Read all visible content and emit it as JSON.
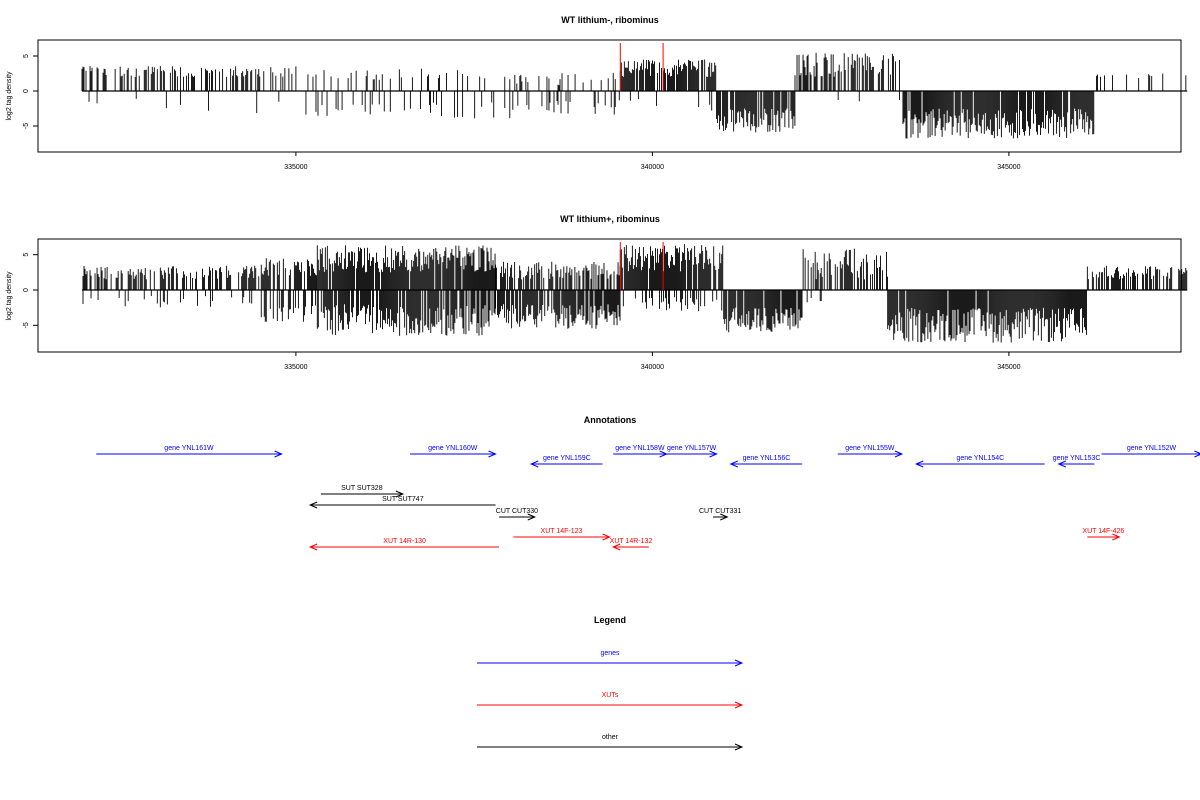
{
  "chart_data": [
    {
      "type": "bar",
      "title": "WT lithium-, ribominus",
      "ylabel": "log2 tag density",
      "xlabel": "",
      "xlim": [
        332000,
        347500
      ],
      "ylim": [
        -8.5,
        7.5
      ],
      "x_ticks": [
        335000,
        340000,
        345000
      ],
      "x_tick_labels": [
        "335000",
        "340000",
        "345000"
      ],
      "y_ticks": [
        -5,
        0,
        5
      ],
      "y_tick_labels": [
        "-5",
        "0",
        "5"
      ],
      "grid": false,
      "bar_color": "#000000",
      "marker_color": "#ff0000",
      "markers_x": [
        339550,
        340150
      ],
      "segments": [
        {
          "x": [
            332000,
            335000
          ],
          "pos": [
            2,
            3.6
          ],
          "pos_density": 0.45,
          "neg": [
            -3.5,
            -1
          ],
          "neg_density": 0.04
        },
        {
          "x": [
            335000,
            338000
          ],
          "pos": [
            1.5,
            3.2
          ],
          "pos_density": 0.2,
          "neg": [
            -4,
            -1.5
          ],
          "neg_density": 0.12
        },
        {
          "x": [
            338000,
            339550
          ],
          "pos": [
            0.8,
            2.6
          ],
          "pos_density": 0.18,
          "neg": [
            -3.5,
            -1.2
          ],
          "neg_density": 0.25
        },
        {
          "x": [
            339550,
            340900
          ],
          "pos": [
            2,
            4.5
          ],
          "pos_density": 0.85,
          "neg": [
            -3,
            -1
          ],
          "neg_density": 0.1
        },
        {
          "x": [
            340900,
            342000
          ],
          "pos": [
            0,
            0
          ],
          "pos_density": 0,
          "neg": [
            -6,
            -2.5
          ],
          "neg_density": 0.85
        },
        {
          "x": [
            342000,
            343500
          ],
          "pos": [
            2,
            5.5
          ],
          "pos_density": 0.6,
          "neg": [
            -2,
            -1
          ],
          "neg_density": 0.02
        },
        {
          "x": [
            343500,
            346200
          ],
          "pos": [
            0,
            0
          ],
          "pos_density": 0,
          "neg": [
            -6.8,
            -2.5
          ],
          "neg_density": 0.9
        },
        {
          "x": [
            346200,
            347500
          ],
          "pos": [
            1.5,
            2.6
          ],
          "pos_density": 0.15,
          "neg": [
            0,
            0
          ],
          "neg_density": 0
        }
      ]
    },
    {
      "type": "bar",
      "title": "WT lithium+, ribominus",
      "ylabel": "log2 tag density",
      "xlabel": "",
      "xlim": [
        332000,
        347500
      ],
      "ylim": [
        -8.5,
        7.5
      ],
      "x_ticks": [
        335000,
        340000,
        345000
      ],
      "x_tick_labels": [
        "335000",
        "340000",
        "345000"
      ],
      "y_ticks": [
        -5,
        0,
        5
      ],
      "y_tick_labels": [
        "-5",
        "0",
        "5"
      ],
      "grid": false,
      "bar_color": "#000000",
      "marker_color": "#ff0000",
      "markers_x": [
        339550,
        340150
      ],
      "segments": [
        {
          "x": [
            332000,
            334500
          ],
          "pos": [
            1.5,
            3.5
          ],
          "pos_density": 0.55,
          "neg": [
            -2.5,
            -0.8
          ],
          "neg_density": 0.1
        },
        {
          "x": [
            334500,
            335300
          ],
          "pos": [
            2,
            4.5
          ],
          "pos_density": 0.7,
          "neg": [
            -4.5,
            -1.5
          ],
          "neg_density": 0.35
        },
        {
          "x": [
            335300,
            337800
          ],
          "pos": [
            2.5,
            6.5
          ],
          "pos_density": 0.95,
          "neg": [
            -6.5,
            -2
          ],
          "neg_density": 0.85
        },
        {
          "x": [
            337800,
            339550
          ],
          "pos": [
            1.5,
            4
          ],
          "pos_density": 0.6,
          "neg": [
            -5.5,
            -2
          ],
          "neg_density": 0.85
        },
        {
          "x": [
            339550,
            341000
          ],
          "pos": [
            2.5,
            6.5
          ],
          "pos_density": 0.95,
          "neg": [
            -3,
            -1
          ],
          "neg_density": 0.3
        },
        {
          "x": [
            341000,
            342100
          ],
          "pos": [
            0,
            0
          ],
          "pos_density": 0,
          "neg": [
            -6,
            -2.5
          ],
          "neg_density": 0.9
        },
        {
          "x": [
            342100,
            343300
          ],
          "pos": [
            1.5,
            6
          ],
          "pos_density": 0.6,
          "neg": [
            -2,
            -1
          ],
          "neg_density": 0.05
        },
        {
          "x": [
            343300,
            346100
          ],
          "pos": [
            0,
            0
          ],
          "pos_density": 0,
          "neg": [
            -7.5,
            -2.5
          ],
          "neg_density": 0.95
        },
        {
          "x": [
            346100,
            347500
          ],
          "pos": [
            1.5,
            3.5
          ],
          "pos_density": 0.6,
          "neg": [
            0,
            0
          ],
          "neg_density": 0
        }
      ]
    },
    {
      "type": "annotation-track",
      "title": "Annotations",
      "xlim": [
        332000,
        347500
      ],
      "features": [
        {
          "label": "gene YNL161W",
          "start": 332200,
          "end": 334800,
          "strand": "+",
          "row": 0,
          "class": "gene"
        },
        {
          "label": "gene YNL160W",
          "start": 336600,
          "end": 337800,
          "strand": "+",
          "row": 0,
          "class": "gene"
        },
        {
          "label": "gene YNL159C",
          "start": 338300,
          "end": 339300,
          "strand": "-",
          "row": 1,
          "class": "gene"
        },
        {
          "label": "gene YNL158W",
          "start": 339450,
          "end": 340200,
          "strand": "+",
          "row": 0,
          "class": "gene"
        },
        {
          "label": "gene YNL157W",
          "start": 340200,
          "end": 340900,
          "strand": "+",
          "row": 0,
          "class": "gene"
        },
        {
          "label": "gene YNL156C",
          "start": 341100,
          "end": 342100,
          "strand": "-",
          "row": 1,
          "class": "gene"
        },
        {
          "label": "gene YNL155W",
          "start": 342600,
          "end": 343500,
          "strand": "+",
          "row": 0,
          "class": "gene"
        },
        {
          "label": "gene YNL154C",
          "start": 343700,
          "end": 345500,
          "strand": "-",
          "row": 1,
          "class": "gene"
        },
        {
          "label": "gene YNL153C",
          "start": 345700,
          "end": 346200,
          "strand": "-",
          "row": 1,
          "class": "gene"
        },
        {
          "label": "gene YNL152W",
          "start": 346300,
          "end": 347700,
          "strand": "+",
          "row": 0,
          "class": "gene"
        },
        {
          "label": "SUT SUT328",
          "start": 535200,
          "end": 0,
          "strand": "",
          "row": -1,
          "class": "skip"
        }
      ],
      "others": [
        {
          "label": "SUT SUT328",
          "start": 335350,
          "end": 336500,
          "strand": "+",
          "row": 2,
          "class": "other"
        },
        {
          "label": "SUT SUT747",
          "start": 335200,
          "end": 337800,
          "strand": "-",
          "row": 3,
          "class": "other"
        },
        {
          "label": "CUT CUT330",
          "start": 337850,
          "end": 338350,
          "strand": "+",
          "row": 4,
          "class": "other"
        },
        {
          "label": "CUT CUT331",
          "start": 340850,
          "end": 341050,
          "strand": "+",
          "row": 4,
          "class": "other"
        },
        {
          "label": "XUT 14F-123",
          "start": 338050,
          "end": 339400,
          "strand": "+",
          "row": 5,
          "class": "xut"
        },
        {
          "label": "XUT 14R-130",
          "start": 335200,
          "end": 337850,
          "strand": "-",
          "row": 6,
          "class": "xut"
        },
        {
          "label": "XUT 14R-132",
          "start": 339450,
          "end": 339950,
          "strand": "-",
          "row": 6,
          "class": "xut"
        },
        {
          "label": "XUT 14F-426",
          "start": 346100,
          "end": 346550,
          "strand": "+",
          "row": 5,
          "class": "xut"
        }
      ]
    },
    {
      "type": "legend",
      "title": "Legend",
      "entries": [
        {
          "label": "genes",
          "color": "#0000ff"
        },
        {
          "label": "XUTs",
          "color": "#ff0000"
        },
        {
          "label": "other",
          "color": "#000000"
        }
      ]
    }
  ],
  "colors": {
    "gene": "#0000ff",
    "xut": "#ff0000",
    "other": "#000000",
    "marker": "#ff0000",
    "bars": "#000000"
  }
}
